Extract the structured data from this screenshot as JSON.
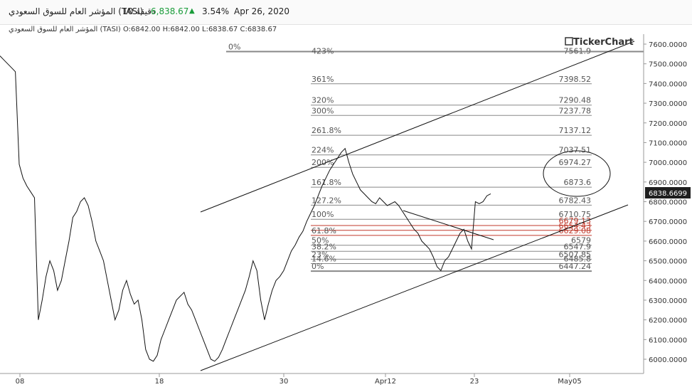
{
  "header": {
    "instrument": "المؤشر العام للسوق السعودي (TASI)",
    "interval": "10 دقيقة",
    "last_price": "6,838.67",
    "change_pct": "3.54%",
    "date": "Apr 26, 2020",
    "up_color": "#1a9c3a"
  },
  "ohlc": {
    "name": "المؤشر العام للسوق السعودي (TASI)",
    "open": "O:6842.00",
    "high": "H:6842.00",
    "low": "L:6838.67",
    "close": "C:6838.67"
  },
  "logo": {
    "text": "TickerChart",
    "icon": "tickerchart-logo-icon"
  },
  "price_tag": "6838.6699",
  "chart_data": {
    "type": "line",
    "y_axis": {
      "side": "right",
      "ylim": [
        5960,
        7620
      ],
      "ticks": [
        "6000.0000",
        "6100.0000",
        "6200.0000",
        "6300.0000",
        "6400.0000",
        "6500.0000",
        "6600.0000",
        "6700.0000",
        "6800.0000",
        "6900.0000",
        "7000.0000",
        "7100.0000",
        "7200.0000",
        "7300.0000",
        "7400.0000",
        "7500.0000",
        "7600.0000"
      ]
    },
    "x_axis": {
      "ticks": [
        "08",
        "18",
        "30",
        "Apr12",
        "23",
        "May05"
      ]
    },
    "series": [
      {
        "values": [
          7540,
          7520,
          7500,
          7480,
          7460,
          6990,
          6920,
          6880,
          6850,
          6820,
          6200,
          6300,
          6420,
          6500,
          6450,
          6350,
          6400,
          6500,
          6600,
          6720,
          6750,
          6800,
          6820,
          6780,
          6700,
          6600,
          6550,
          6500,
          6400,
          6300,
          6200,
          6250,
          6350,
          6400,
          6330,
          6280,
          6300,
          6200,
          6050,
          6000,
          5990,
          6020,
          6100,
          6150,
          6200,
          6250,
          6300,
          6320,
          6340,
          6280,
          6250,
          6200,
          6150,
          6100,
          6050,
          6000,
          5990,
          6010,
          6050,
          6100,
          6150,
          6200,
          6250,
          6300,
          6350,
          6420,
          6500,
          6450,
          6300,
          6200,
          6280,
          6350,
          6400,
          6420,
          6450,
          6500,
          6550,
          6580,
          6620,
          6650,
          6700,
          6740,
          6780,
          6830,
          6880,
          6920,
          6960,
          6990,
          7020,
          7050,
          7070,
          7000,
          6940,
          6900,
          6860,
          6840,
          6820,
          6800,
          6790,
          6820,
          6800,
          6780,
          6790,
          6800,
          6780,
          6750,
          6720,
          6690,
          6660,
          6640,
          6600,
          6580,
          6560,
          6520,
          6470,
          6450,
          6500,
          6520,
          6560,
          6600,
          6640,
          6660,
          6600,
          6560,
          6800,
          6790,
          6800,
          6830,
          6840
        ]
      }
    ],
    "fibonacci": [
      {
        "label": "0%",
        "value": "7561.9",
        "level": 7561.9
      },
      {
        "label": "423%",
        "value": "",
        "level": 7561.9
      },
      {
        "label": "361%",
        "value": "7398.52",
        "level": 7398.52
      },
      {
        "label": "320%",
        "value": "7290.48",
        "level": 7290.48
      },
      {
        "label": "300%",
        "value": "7237.78",
        "level": 7237.78
      },
      {
        "label": "261.8%",
        "value": "7137.12",
        "level": 7137.12
      },
      {
        "label": "224%",
        "value": "7037.51",
        "level": 7037.51
      },
      {
        "label": "200%",
        "value": "6974.27",
        "level": 6974.27
      },
      {
        "label": "161.8%",
        "value": "6873.6",
        "level": 6873.6
      },
      {
        "label": "127.2%",
        "value": "6782.43",
        "level": 6782.43
      },
      {
        "label": "100%",
        "value": "6710.75",
        "level": 6710.75
      },
      {
        "label": "",
        "value": "6679.13",
        "level": 6679.13
      },
      {
        "label": "",
        "value": "6654.43",
        "level": 6654.43
      },
      {
        "label": "61.8%",
        "value": "6629.08",
        "level": 6629.08
      },
      {
        "label": "50%",
        "value": "6579",
        "level": 6579
      },
      {
        "label": "38.2%",
        "value": "6547.9",
        "level": 6547.9
      },
      {
        "label": "23%",
        "value": "6507.85",
        "level": 6507.85
      },
      {
        "label": "14.6%",
        "value": "6485.8",
        "level": 6485.8
      },
      {
        "label": "0%",
        "value": "6447.24",
        "level": 6447.24
      }
    ],
    "colors": {
      "line": "#111111",
      "fib": "#888888",
      "fib_red": "#c0392b",
      "price_tag_bg": "#1e1e1e"
    }
  }
}
